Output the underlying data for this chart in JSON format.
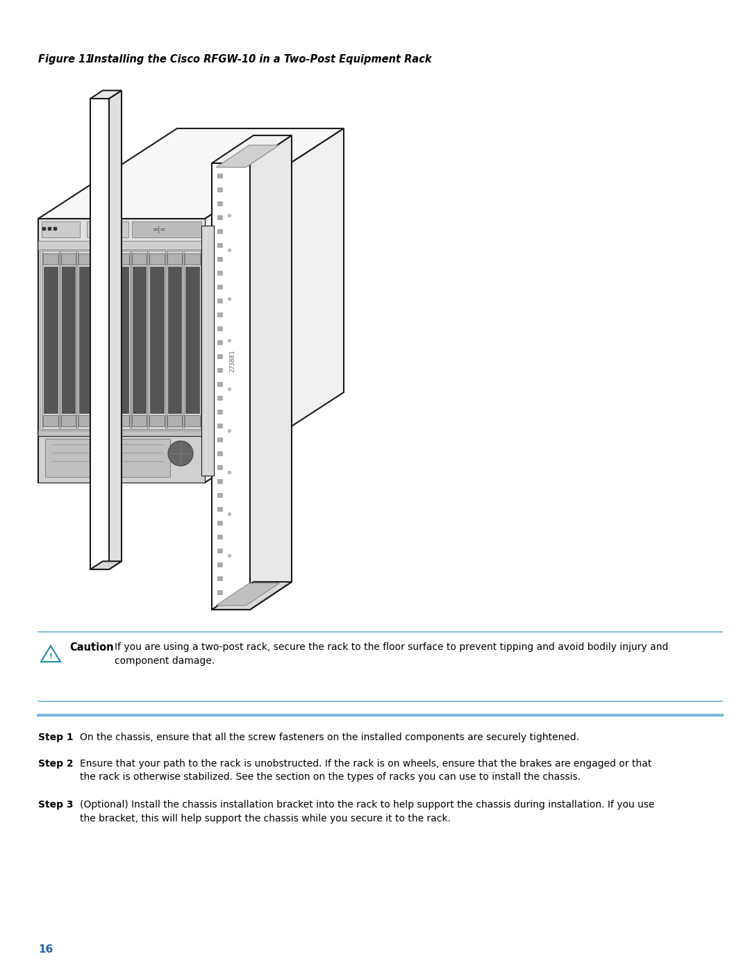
{
  "bg_color": "#ffffff",
  "figure_label": "Figure 11",
  "figure_title": "    Installing the Cisco RFGW-10 in a Two-Post Equipment Rack",
  "caution_text": "If you are using a two-post rack, secure the rack to the floor surface to prevent tipping and avoid bodily injury and\ncomponent damage.",
  "step1_label": "Step 1",
  "step1_text": "On the chassis, ensure that all the screw fasteners on the installed components are securely tightened.",
  "step2_label": "Step 2",
  "step2_text": "Ensure that your path to the rack is unobstructed. If the rack is on wheels, ensure that the brakes are engaged or that\nthe rack is otherwise stabilized. See the section on the types of racks you can use to install the chassis.",
  "step3_label": "Step 3",
  "step3_text": "(Optional) Install the chassis installation bracket into the rack to help support the chassis during installation. If you use\nthe bracket, this will help support the chassis while you secure it to the rack.",
  "page_number": "16",
  "line_color": "#7ab8d4",
  "caution_label": "Caution",
  "id_label": "273881"
}
